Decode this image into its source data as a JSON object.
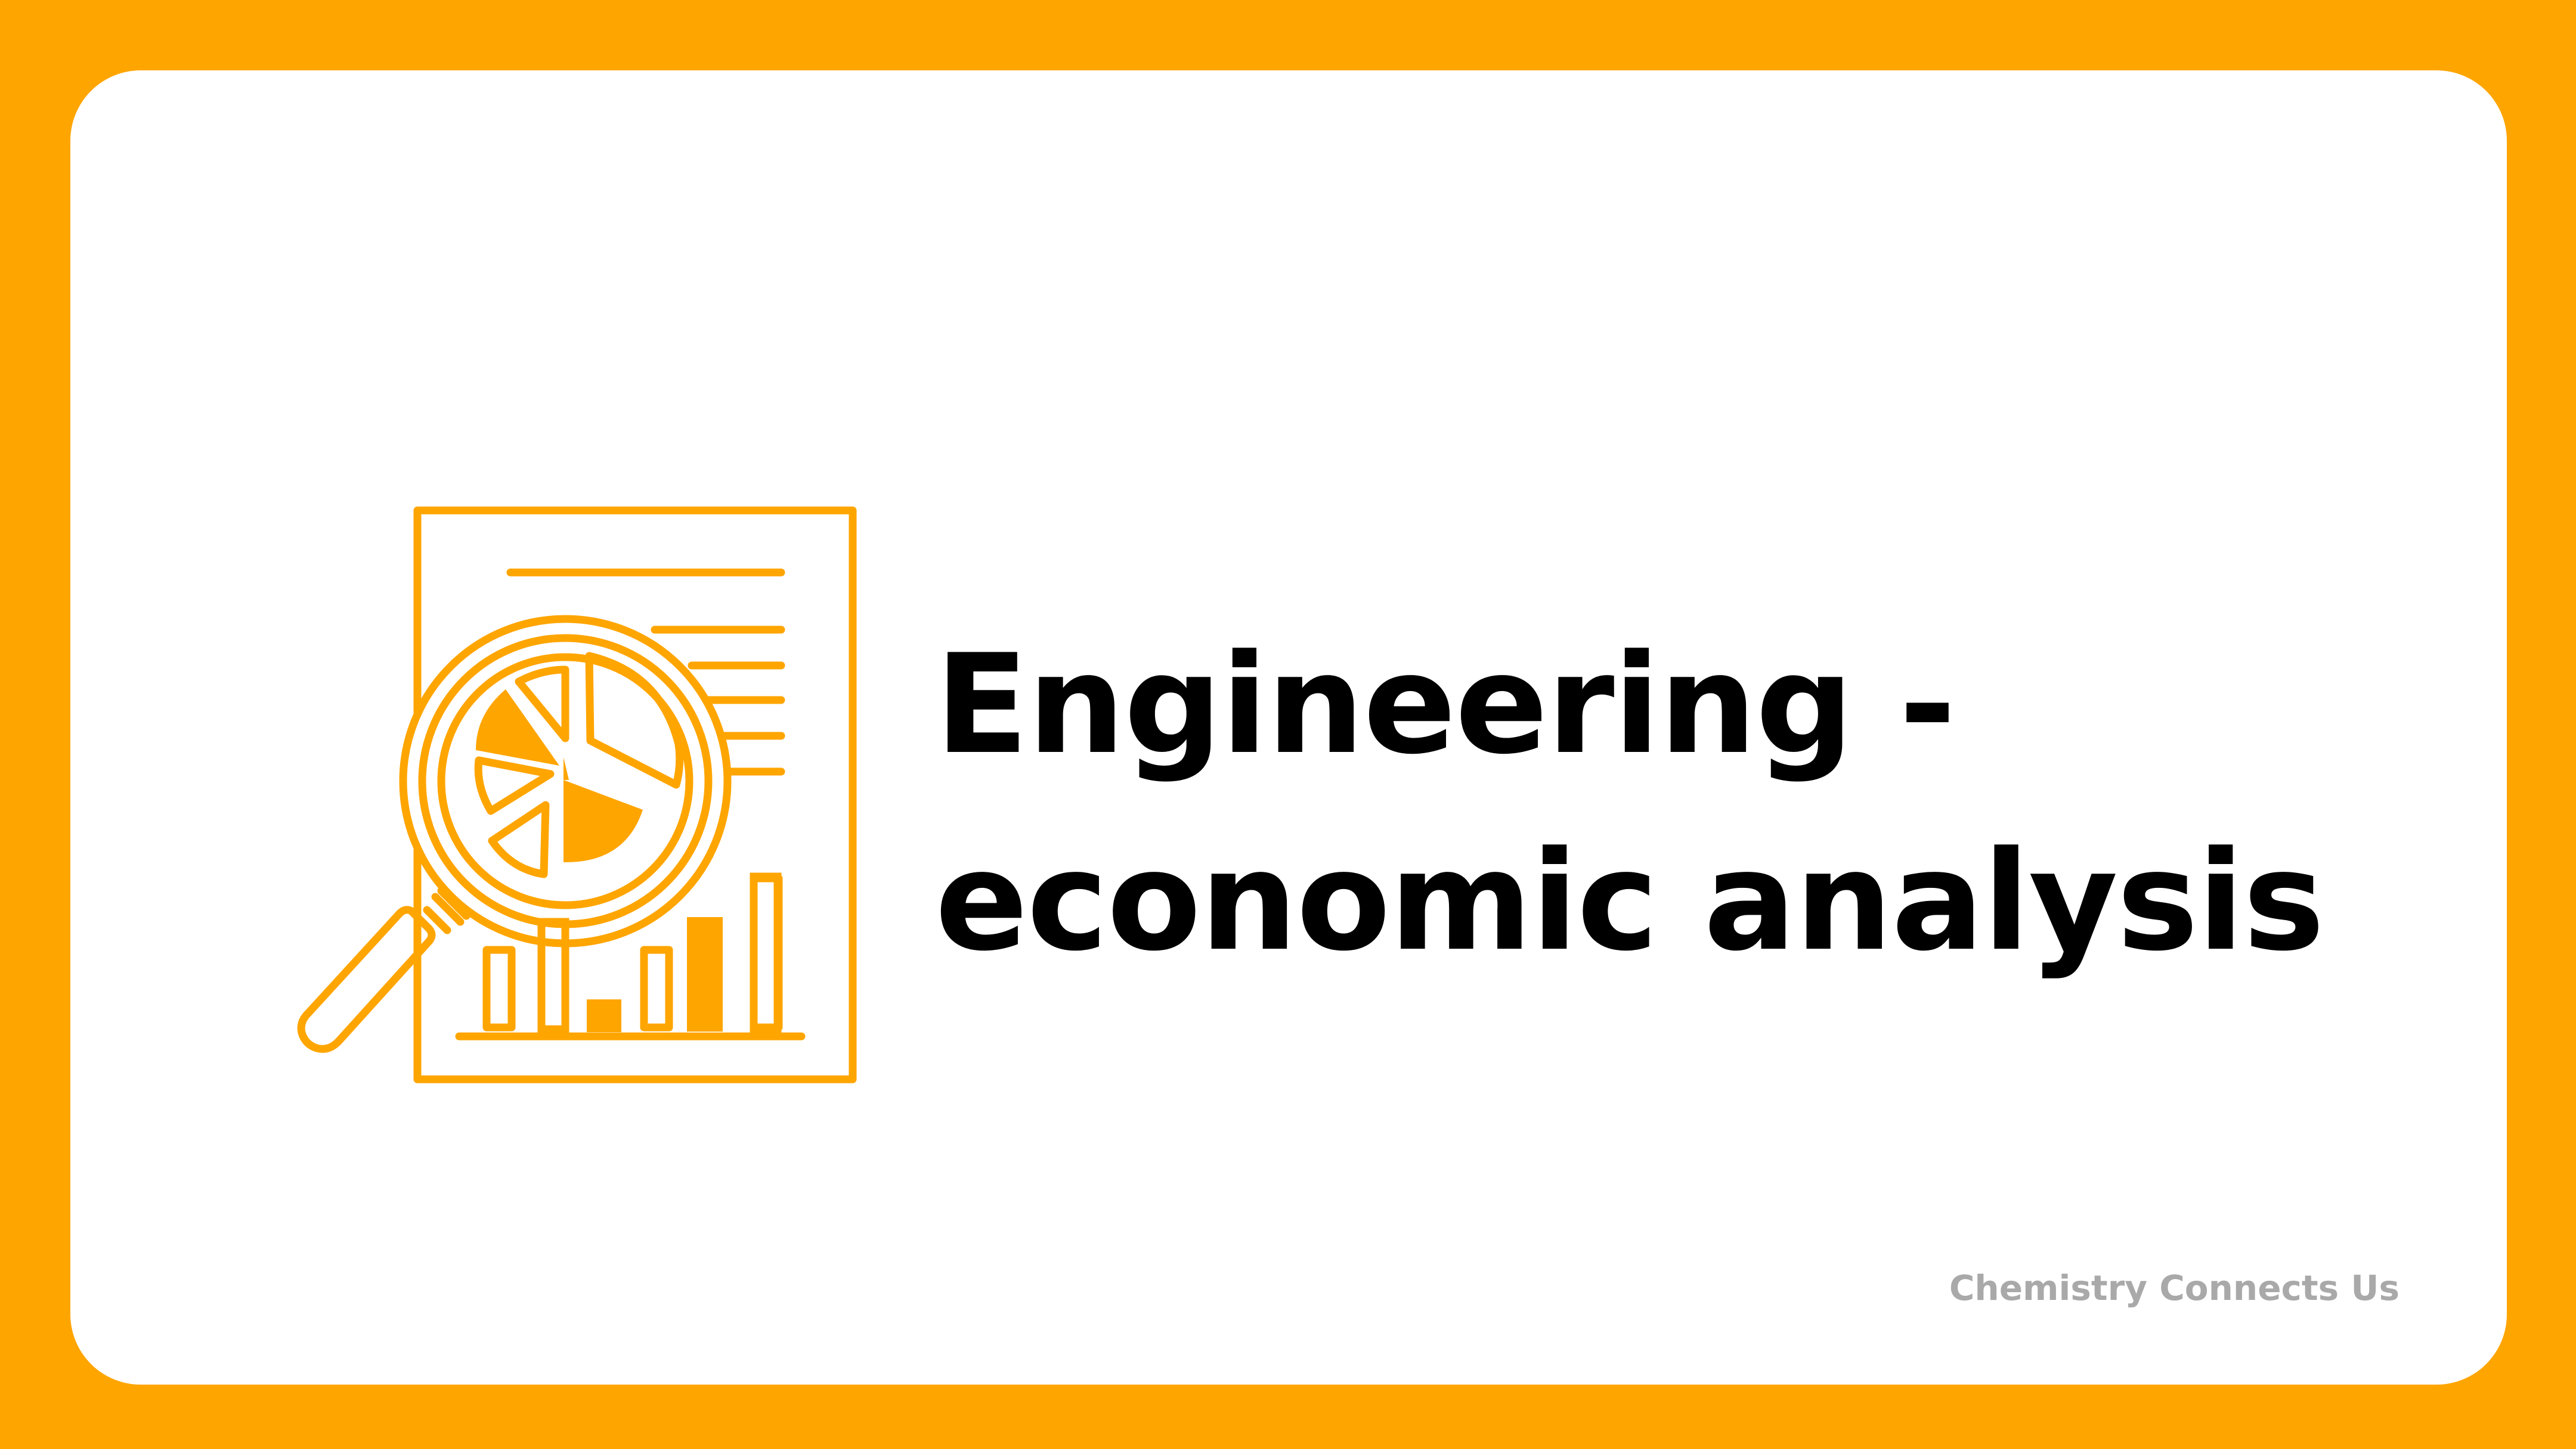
{
  "colors": {
    "frame": "#FFA500",
    "card": "#FFFFFF",
    "accent": "#FFA500",
    "title_text": "#000000",
    "footer_text": "#A9A9A9"
  },
  "slide": {
    "title_line1": "Engineering -",
    "title_line2": "economic analysis",
    "footer": "Chemistry Connects Us"
  },
  "illustration": {
    "icon": "document-magnifier-analysis-icon"
  }
}
